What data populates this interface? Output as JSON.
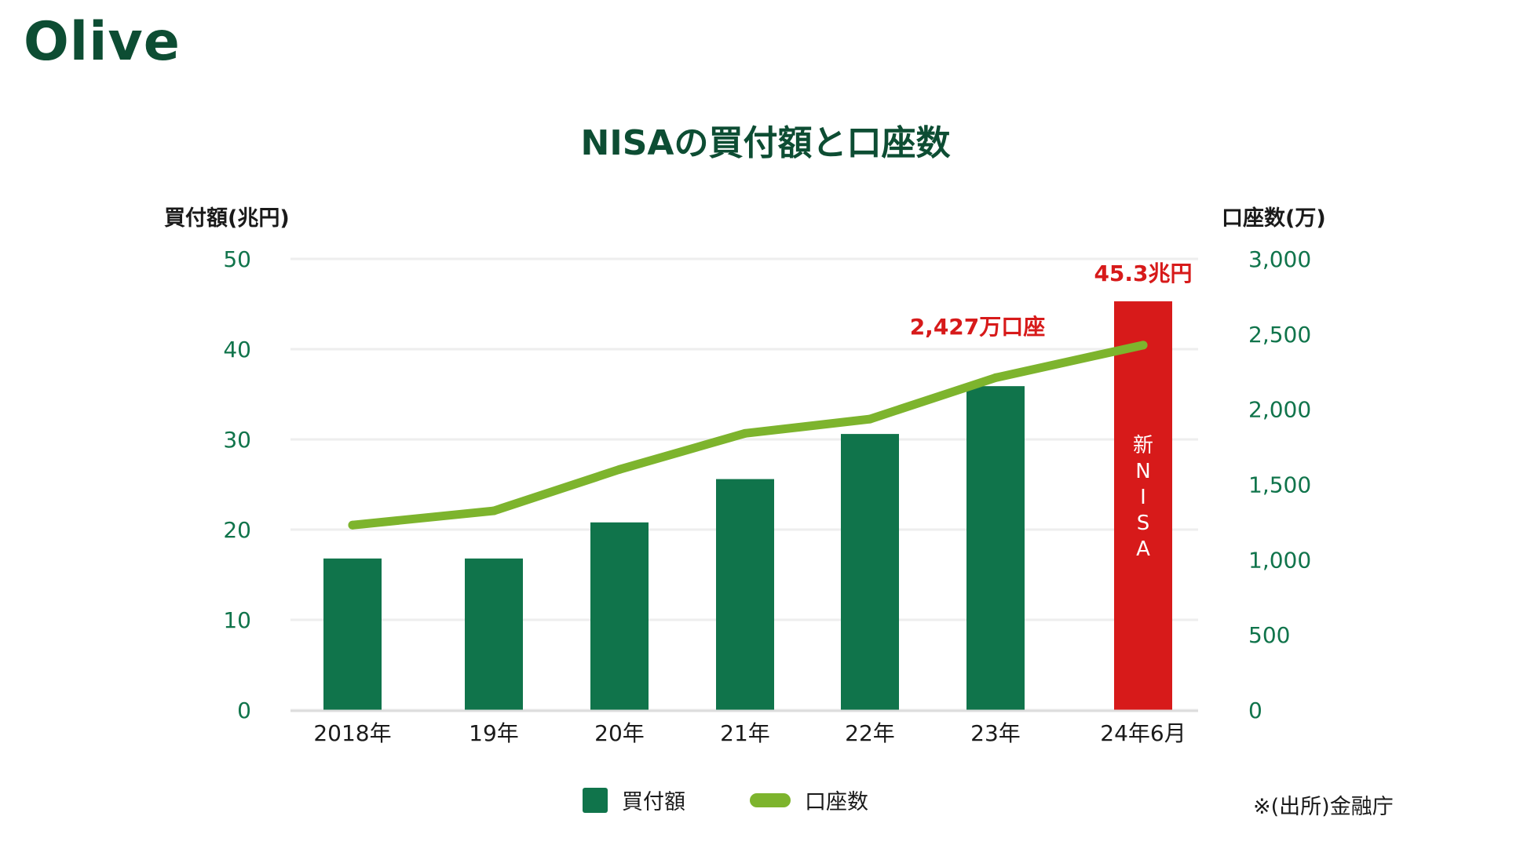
{
  "brand": {
    "logo_text": "Olive"
  },
  "colors": {
    "brand_green": "#0d4d33",
    "bar_green": "#10744b",
    "bar_red": "#d71a1a",
    "line_green": "#7db42d",
    "tick_green": "#10744b",
    "grid": "#eeeeee",
    "annotation_red": "#d71a1a"
  },
  "chart_data": {
    "type": "bar",
    "title": "NISAの買付額と口座数",
    "categories": [
      "2018年",
      "19年",
      "20年",
      "21年",
      "22年",
      "23年",
      "24年6月"
    ],
    "series": [
      {
        "name": "買付額",
        "type": "bar",
        "axis": "left",
        "values": [
          16.8,
          16.8,
          20.8,
          25.6,
          30.6,
          35.9,
          45.3
        ],
        "colors": [
          "#10744b",
          "#10744b",
          "#10744b",
          "#10744b",
          "#10744b",
          "#10744b",
          "#d71a1a"
        ]
      },
      {
        "name": "口座数",
        "type": "line",
        "axis": "right",
        "values": [
          1230,
          1325,
          1600,
          1840,
          1935,
          2210,
          2427
        ]
      }
    ],
    "y_left": {
      "label": "買付額(兆円)",
      "ylim": [
        0,
        50
      ],
      "ticks": [
        "0",
        "10",
        "20",
        "30",
        "40",
        "50"
      ]
    },
    "y_right": {
      "label": "口座数(万)",
      "ylim": [
        0,
        3000
      ],
      "ticks": [
        "0",
        "500",
        "1,000",
        "1,500",
        "2,000",
        "2,500",
        "3,000"
      ]
    },
    "grid": true,
    "legend": {
      "placement": "bottom",
      "entries": [
        "買付額",
        "口座数"
      ]
    },
    "annotations": {
      "bar_top": "45.3兆円",
      "line_end": "2,427万口座",
      "bar_inside": [
        "新",
        "N",
        "I",
        "S",
        "A"
      ]
    }
  },
  "footer": {
    "source": "※(出所)金融庁"
  }
}
